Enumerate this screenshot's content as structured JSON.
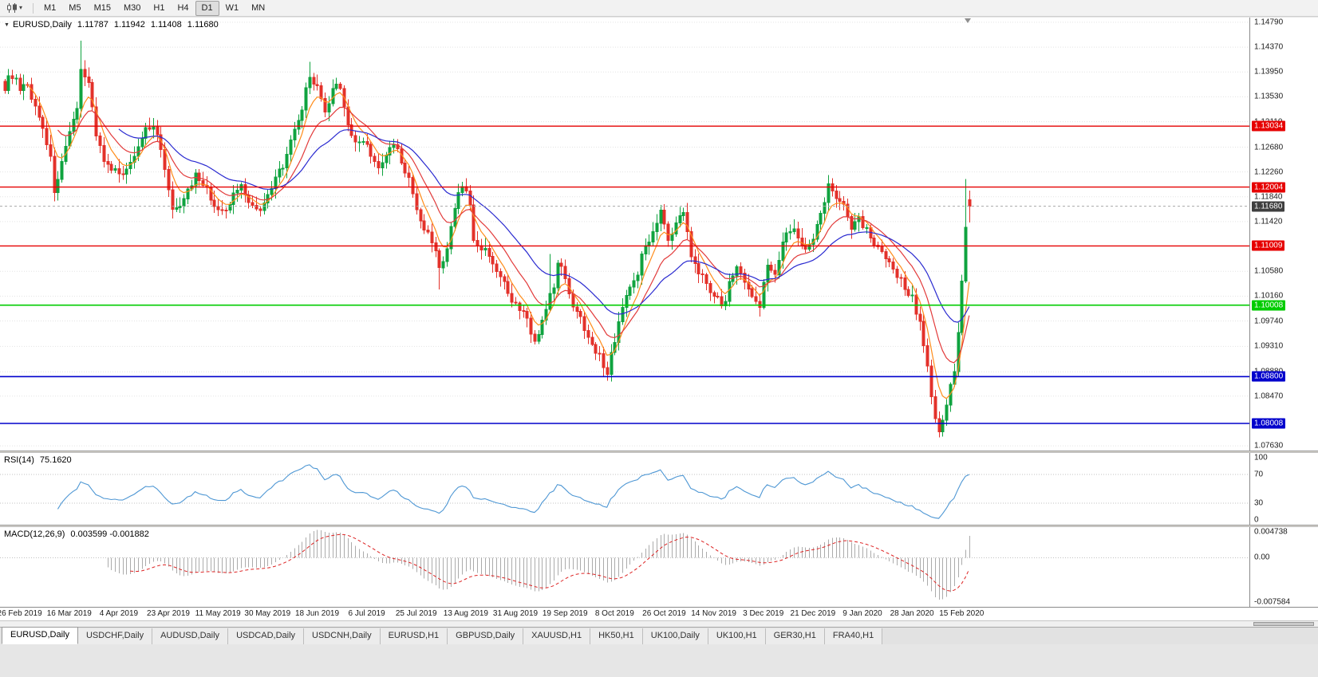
{
  "toolbar": {
    "timeframes": [
      {
        "label": "M1",
        "active": false
      },
      {
        "label": "M5",
        "active": false
      },
      {
        "label": "M15",
        "active": false
      },
      {
        "label": "M30",
        "active": false
      },
      {
        "label": "H1",
        "active": false
      },
      {
        "label": "H4",
        "active": false
      },
      {
        "label": "D1",
        "active": true
      },
      {
        "label": "W1",
        "active": false
      },
      {
        "label": "MN",
        "active": false
      }
    ]
  },
  "chart": {
    "title": "EURUSD,Daily",
    "ohlc": {
      "open": "1.11787",
      "high": "1.11942",
      "low": "1.11408",
      "close": "1.11680"
    },
    "price_axis_ticks": [
      {
        "label": "1.14790",
        "value": 1.1479
      },
      {
        "label": "1.14370",
        "value": 1.1437
      },
      {
        "label": "1.13950",
        "value": 1.1395
      },
      {
        "label": "1.13530",
        "value": 1.1353
      },
      {
        "label": "1.13110",
        "value": 1.1311
      },
      {
        "label": "1.12680",
        "value": 1.1268
      },
      {
        "label": "1.12260",
        "value": 1.1226
      },
      {
        "label": "1.11840",
        "value": 1.1184
      },
      {
        "label": "1.11420",
        "value": 1.1142
      },
      {
        "label": "1.10580",
        "value": 1.1058
      },
      {
        "label": "1.10160",
        "value": 1.1016
      },
      {
        "label": "1.09740",
        "value": 1.0974
      },
      {
        "label": "1.09310",
        "value": 1.0931
      },
      {
        "label": "1.08880",
        "value": 1.0888
      },
      {
        "label": "1.08470",
        "value": 1.0847
      },
      {
        "label": "1.07630",
        "value": 1.0763
      }
    ],
    "price_lines": [
      {
        "label": "1.13034",
        "value": 1.13034,
        "color": "#e60000",
        "width": 1.4,
        "type": "resistance"
      },
      {
        "label": "1.12004",
        "value": 1.12004,
        "color": "#e60000",
        "width": 1.4,
        "type": "resistance"
      },
      {
        "label": "1.11009",
        "value": 1.11009,
        "color": "#e60000",
        "width": 1.4,
        "type": "resistance"
      },
      {
        "label": "1.10008",
        "value": 1.10008,
        "color": "#00cc00",
        "width": 1.6,
        "type": "support"
      },
      {
        "label": "1.08800",
        "value": 1.088,
        "color": "#0000cc",
        "width": 1.6,
        "type": "support"
      },
      {
        "label": "1.08008",
        "value": 1.08008,
        "color": "#0000cc",
        "width": 1.6,
        "type": "support"
      }
    ],
    "current_price": {
      "label": "1.11680",
      "value": 1.1168,
      "box_color": "#3f3f3f"
    },
    "date_labels": [
      "26 Feb 2019",
      "16 Mar 2019",
      "4 Apr 2019",
      "23 Apr 2019",
      "11 May 2019",
      "30 May 2019",
      "18 Jun 2019",
      "6 Jul 2019",
      "25 Jul 2019",
      "13 Aug 2019",
      "31 Aug 2019",
      "19 Sep 2019",
      "8 Oct 2019",
      "26 Oct 2019",
      "14 Nov 2019",
      "3 Dec 2019",
      "21 Dec 2019",
      "9 Jan 2020",
      "28 Jan 2020",
      "15 Feb 2020"
    ]
  },
  "indicators": {
    "rsi": {
      "name": "RSI(14)",
      "value_text": "75.1620",
      "axis_labels": [
        {
          "label": "100",
          "value": 100
        },
        {
          "label": "70",
          "value": 70
        },
        {
          "label": "30",
          "value": 30
        },
        {
          "label": "0",
          "value": 0
        }
      ],
      "level_lines": [
        70,
        30
      ],
      "line_color": "#4e97d4"
    },
    "macd": {
      "name": "MACD(12,26,9)",
      "value_text": "0.003599 -0.001882",
      "axis_labels": [
        {
          "label": "0.004738",
          "value": 0.004738
        },
        {
          "label": "0.00",
          "value": 0
        },
        {
          "label": "-0.007584",
          "value": -0.007584
        }
      ],
      "histogram_color": "#ababab",
      "signal_color": "#dd2222"
    }
  },
  "tabs": [
    {
      "label": "EURUSD,Daily",
      "active": true
    },
    {
      "label": "USDCHF,Daily",
      "active": false
    },
    {
      "label": "AUDUSD,Daily",
      "active": false
    },
    {
      "label": "USDCAD,Daily",
      "active": false
    },
    {
      "label": "USDCNH,Daily",
      "active": false
    },
    {
      "label": "EURUSD,H1",
      "active": false
    },
    {
      "label": "GBPUSD,Daily",
      "active": false
    },
    {
      "label": "XAUUSD,H1",
      "active": false
    },
    {
      "label": "HK50,H1",
      "active": false
    },
    {
      "label": "UK100,Daily",
      "active": false
    },
    {
      "label": "UK100,H1",
      "active": false
    },
    {
      "label": "GER30,H1",
      "active": false
    },
    {
      "label": "FRA40,H1",
      "active": false
    }
  ],
  "chart_data": {
    "type": "candlestick",
    "symbol": "EURUSD",
    "timeframe": "Daily",
    "visible_candles": 254,
    "y_domain": [
      1.0755,
      1.1487
    ],
    "colors": {
      "bull": "#0fa33f",
      "bear": "#e3312a",
      "ma_fast": "#ff8c1a",
      "ma_mid": "#e23a3a",
      "ma_slow": "#2a2ad0"
    },
    "moving_averages": [
      {
        "period": 6,
        "color": "#ff8c1a"
      },
      {
        "period": 14,
        "color": "#e23a3a"
      },
      {
        "period": 30,
        "color": "#2a2ad0"
      }
    ],
    "last_candle": {
      "open": 1.11787,
      "high": 1.11942,
      "low": 1.11408,
      "close": 1.1168
    },
    "wick_overrides": [
      [
        20,
        "h",
        1.1448
      ],
      [
        80,
        "h",
        1.1412
      ],
      [
        13,
        "l",
        1.1176
      ],
      [
        114,
        "l",
        1.1027
      ],
      [
        143,
        "h",
        1.1087
      ],
      [
        158,
        "l",
        1.0879
      ],
      [
        245,
        "l",
        1.0778
      ],
      [
        252,
        "h",
        1.1214
      ]
    ],
    "close_anchors": [
      [
        0,
        1.1368
      ],
      [
        2,
        1.1392
      ],
      [
        4,
        1.136
      ],
      [
        6,
        1.1372
      ],
      [
        8,
        1.1335
      ],
      [
        10,
        1.1305
      ],
      [
        12,
        1.1248
      ],
      [
        13,
        1.1195
      ],
      [
        15,
        1.124
      ],
      [
        17,
        1.129
      ],
      [
        19,
        1.133
      ],
      [
        20,
        1.1405
      ],
      [
        22,
        1.1375
      ],
      [
        24,
        1.1295
      ],
      [
        26,
        1.1245
      ],
      [
        28,
        1.1222
      ],
      [
        30,
        1.1232
      ],
      [
        32,
        1.1226
      ],
      [
        34,
        1.1258
      ],
      [
        36,
        1.1288
      ],
      [
        38,
        1.1302
      ],
      [
        40,
        1.1288
      ],
      [
        42,
        1.123
      ],
      [
        44,
        1.1158
      ],
      [
        46,
        1.1178
      ],
      [
        48,
        1.1192
      ],
      [
        50,
        1.1222
      ],
      [
        52,
        1.1212
      ],
      [
        54,
        1.1178
      ],
      [
        56,
        1.1162
      ],
      [
        58,
        1.1156
      ],
      [
        60,
        1.1188
      ],
      [
        62,
        1.1206
      ],
      [
        64,
        1.1178
      ],
      [
        66,
        1.1162
      ],
      [
        68,
        1.1178
      ],
      [
        70,
        1.1192
      ],
      [
        72,
        1.1228
      ],
      [
        74,
        1.1252
      ],
      [
        76,
        1.1292
      ],
      [
        78,
        1.1335
      ],
      [
        80,
        1.1388
      ],
      [
        82,
        1.1368
      ],
      [
        84,
        1.1322
      ],
      [
        86,
        1.1362
      ],
      [
        88,
        1.1372
      ],
      [
        90,
        1.1305
      ],
      [
        92,
        1.1272
      ],
      [
        94,
        1.1282
      ],
      [
        96,
        1.1258
      ],
      [
        98,
        1.1228
      ],
      [
        100,
        1.1252
      ],
      [
        102,
        1.1275
      ],
      [
        104,
        1.1242
      ],
      [
        106,
        1.1212
      ],
      [
        108,
        1.1162
      ],
      [
        110,
        1.1128
      ],
      [
        112,
        1.1112
      ],
      [
        114,
        1.1068
      ],
      [
        116,
        1.1092
      ],
      [
        118,
        1.1162
      ],
      [
        120,
        1.1205
      ],
      [
        122,
        1.1172
      ],
      [
        123,
        1.1108
      ],
      [
        125,
        1.1098
      ],
      [
        127,
        1.1088
      ],
      [
        129,
        1.1062
      ],
      [
        131,
        1.1032
      ],
      [
        133,
        1.1002
      ],
      [
        135,
        1.0992
      ],
      [
        137,
        1.0978
      ],
      [
        139,
        1.0938
      ],
      [
        141,
        1.0972
      ],
      [
        143,
        1.1012
      ],
      [
        145,
        1.1068
      ],
      [
        147,
        1.1048
      ],
      [
        149,
        1.1002
      ],
      [
        151,
        1.0978
      ],
      [
        153,
        1.0952
      ],
      [
        155,
        1.0928
      ],
      [
        157,
        1.0898
      ],
      [
        158,
        1.0888
      ],
      [
        160,
        1.0948
      ],
      [
        162,
        1.0998
      ],
      [
        164,
        1.1032
      ],
      [
        166,
        1.1062
      ],
      [
        168,
        1.1098
      ],
      [
        170,
        1.1132
      ],
      [
        172,
        1.1162
      ],
      [
        174,
        1.1108
      ],
      [
        176,
        1.1138
      ],
      [
        178,
        1.1158
      ],
      [
        180,
        1.1092
      ],
      [
        182,
        1.1062
      ],
      [
        184,
        1.1038
      ],
      [
        186,
        1.1018
      ],
      [
        188,
        1.0998
      ],
      [
        190,
        1.1038
      ],
      [
        192,
        1.1068
      ],
      [
        194,
        1.1042
      ],
      [
        196,
        1.1012
      ],
      [
        198,
        1.0998
      ],
      [
        200,
        1.1068
      ],
      [
        202,
        1.1058
      ],
      [
        204,
        1.1108
      ],
      [
        206,
        1.1132
      ],
      [
        208,
        1.1118
      ],
      [
        210,
        1.1088
      ],
      [
        212,
        1.1108
      ],
      [
        214,
        1.1152
      ],
      [
        216,
        1.1202
      ],
      [
        218,
        1.1188
      ],
      [
        220,
        1.1168
      ],
      [
        222,
        1.1132
      ],
      [
        224,
        1.1152
      ],
      [
        226,
        1.1128
      ],
      [
        228,
        1.1108
      ],
      [
        230,
        1.1092
      ],
      [
        232,
        1.1078
      ],
      [
        234,
        1.1048
      ],
      [
        236,
        1.1032
      ],
      [
        238,
        1.1012
      ],
      [
        240,
        1.0975
      ],
      [
        241,
        1.094
      ],
      [
        242,
        1.0895
      ],
      [
        243,
        1.0845
      ],
      [
        244,
        1.0812
      ],
      [
        245,
        1.079
      ],
      [
        246,
        1.08
      ],
      [
        247,
        1.0838
      ],
      [
        248,
        1.0862
      ],
      [
        249,
        1.0892
      ],
      [
        250,
        1.0952
      ],
      [
        251,
        1.1038
      ],
      [
        252,
        1.1135
      ],
      [
        253,
        1.1168
      ]
    ],
    "rsi": {
      "period": 14,
      "last": 75.162,
      "range": [
        0,
        100
      ],
      "line_color": "#4e97d4"
    },
    "macd": {
      "fast": 12,
      "slow": 26,
      "signal": 9,
      "last_main": 0.003599,
      "last_signal": -0.001882,
      "y_domain": [
        -0.008,
        0.005
      ]
    }
  }
}
